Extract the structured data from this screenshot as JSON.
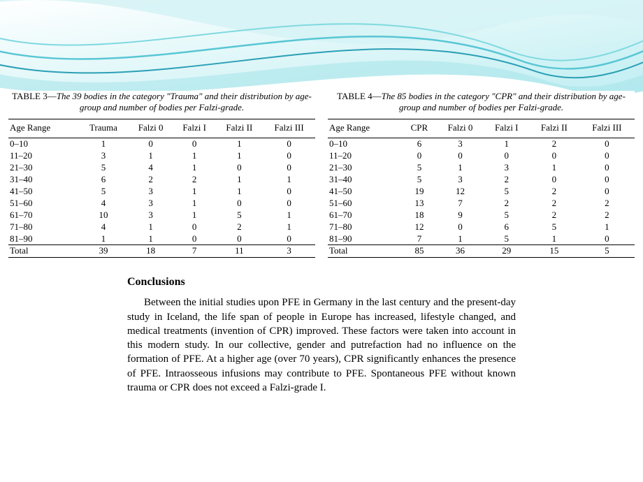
{
  "wave": {
    "bg_from": "#ffffff",
    "bg_to": "#bfeef2",
    "line1": "#7fd9e0",
    "line2": "#58c6d4",
    "line3": "#2a9fb5",
    "fill_light": "#d6f3f5",
    "fill_mid": "#a6e3e9"
  },
  "table3": {
    "label": "TABLE 3—",
    "caption": "The 39 bodies in the category \"Trauma\" and their distribution by age-group and number of bodies per Falzi-grade.",
    "columns": [
      "Age Range",
      "Trauma",
      "Falzi 0",
      "Falzi I",
      "Falzi II",
      "Falzi III"
    ],
    "rows": [
      [
        "0–10",
        "1",
        "0",
        "0",
        "1",
        "0"
      ],
      [
        "11–20",
        "3",
        "1",
        "1",
        "1",
        "0"
      ],
      [
        "21–30",
        "5",
        "4",
        "1",
        "0",
        "0"
      ],
      [
        "31–40",
        "6",
        "2",
        "2",
        "1",
        "1"
      ],
      [
        "41–50",
        "5",
        "3",
        "1",
        "1",
        "0"
      ],
      [
        "51–60",
        "4",
        "3",
        "1",
        "0",
        "0"
      ],
      [
        "61–70",
        "10",
        "3",
        "1",
        "5",
        "1"
      ],
      [
        "71–80",
        "4",
        "1",
        "0",
        "2",
        "1"
      ],
      [
        "81–90",
        "1",
        "1",
        "0",
        "0",
        "0"
      ],
      [
        "Total",
        "39",
        "18",
        "7",
        "11",
        "3"
      ]
    ]
  },
  "table4": {
    "label": "TABLE 4—",
    "caption": "The 85 bodies in the category \"CPR\" and their distribution by age-group and number of bodies per Falzi-grade.",
    "columns": [
      "Age Range",
      "CPR",
      "Falzi 0",
      "Falzi I",
      "Falzi II",
      "Falzi III"
    ],
    "rows": [
      [
        "0–10",
        "6",
        "3",
        "1",
        "2",
        "0"
      ],
      [
        "11–20",
        "0",
        "0",
        "0",
        "0",
        "0"
      ],
      [
        "21–30",
        "5",
        "1",
        "3",
        "1",
        "0"
      ],
      [
        "31–40",
        "5",
        "3",
        "2",
        "0",
        "0"
      ],
      [
        "41–50",
        "19",
        "12",
        "5",
        "2",
        "0"
      ],
      [
        "51–60",
        "13",
        "7",
        "2",
        "2",
        "2"
      ],
      [
        "61–70",
        "18",
        "9",
        "5",
        "2",
        "2"
      ],
      [
        "71–80",
        "12",
        "0",
        "6",
        "5",
        "1"
      ],
      [
        "81–90",
        "7",
        "1",
        "5",
        "1",
        "0"
      ],
      [
        "Total",
        "85",
        "36",
        "29",
        "15",
        "5"
      ]
    ]
  },
  "conclusions": {
    "heading": "Conclusions",
    "body": "Between the initial studies upon PFE in Germany in the last century and the present-day study in Iceland, the life span of people in Europe has increased, lifestyle changed, and medical treatments (invention of CPR) improved. These factors were taken into account in this modern study. In our collective, gender and putrefaction had no influence on the formation of PFE. At a higher age (over 70 years), CPR significantly enhances the presence of PFE. Intraosseous infusions may contribute to PFE. Spontaneous PFE without known trauma or CPR does not exceed a Falzi-grade I."
  }
}
